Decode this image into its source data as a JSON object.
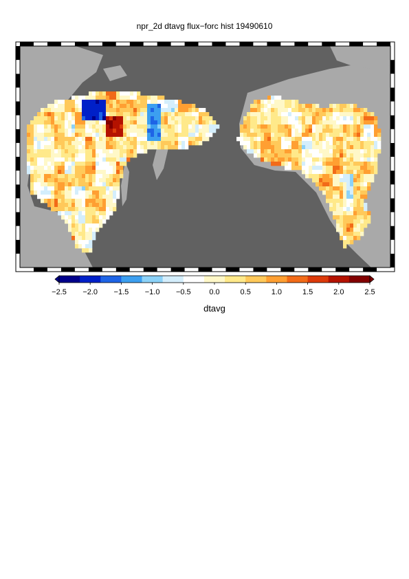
{
  "chart_data": {
    "type": "heatmap",
    "title": "npr_2d dtavg flux−forc hist 19490610",
    "colorbar": {
      "label": "dtavg",
      "ticks": [
        "−2.5",
        "−2.0",
        "−1.5",
        "−1.0",
        "−0.5",
        "0.0",
        "0.5",
        "1.0",
        "1.5",
        "2.0",
        "2.5"
      ],
      "tick_values": [
        -2.5,
        -2.0,
        -1.5,
        -1.0,
        -0.5,
        0.0,
        0.5,
        1.0,
        1.5,
        2.0,
        2.5
      ],
      "range": [
        -2.5,
        2.5
      ],
      "extend": "both",
      "colors": [
        "#00008a",
        "#0020c8",
        "#1e64e6",
        "#3c9ff0",
        "#8cd2f8",
        "#d4eefc",
        "#ffffff",
        "#fff8c8",
        "#ffe98a",
        "#ffc95a",
        "#ff9f32",
        "#f26b18",
        "#dc3a0a",
        "#b41200",
        "#820000"
      ]
    },
    "map": {
      "ocean_color": "#616161",
      "land_color": "#a9a9a9",
      "region": "North Pacific (East Asia to North America)"
    }
  }
}
